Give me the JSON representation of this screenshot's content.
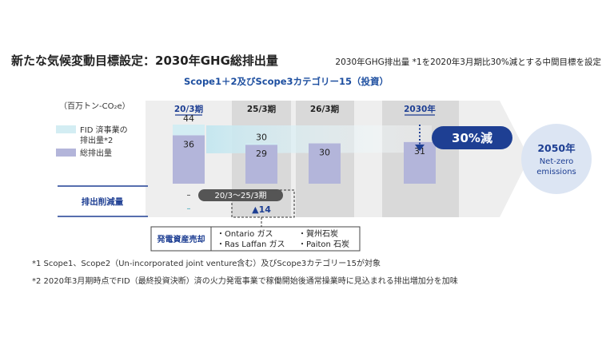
{
  "header": {
    "title": "新たな気候変動目標設定：2030年GHG総排出量",
    "subtitle": "2030年GHG排出量 *1を2020年3月期比30%減とする中間目標を設定"
  },
  "chart_data": {
    "type": "bar",
    "title": "Scope1＋2及びScope3カテゴリー15（投資）",
    "unit_label": "（百万トン-CO₂e）",
    "categories": [
      "20/3期",
      "25/3期",
      "26/3期",
      "2030年"
    ],
    "series": [
      {
        "name": "総排出量",
        "values": [
          36,
          29,
          30,
          31
        ]
      },
      {
        "name": "FID 済事業の排出量*2",
        "values": [
          8,
          1,
          0,
          0
        ]
      }
    ],
    "totals": [
      "44",
      "30",
      "",
      ""
    ],
    "ylim": [
      0,
      44
    ],
    "target_label": "30%減",
    "goal": {
      "year": "2050年",
      "line1": "Net-zero",
      "line2": "emissions"
    },
    "reduction": {
      "row_label": "排出削減量",
      "period_label": "20/3～25/3期",
      "value": "▲14",
      "base_dashes": [
        "–",
        "–"
      ]
    },
    "asset_sales": {
      "label": "発電資産売却",
      "items": [
        "・Ontario ガス",
        "・賀州石炭",
        "・Ras Laffan ガス",
        "・Paiton 石炭"
      ]
    },
    "colors": {
      "total": "#b3b5da",
      "fid": "#d3edf3",
      "highlight": "#1e3f93",
      "teal": "#2a9fb3",
      "gray_band": "#d9d9d9",
      "arrow": "#eeeeee",
      "goal_circle": "#dce5f3"
    }
  },
  "footnotes": [
    "*1 Scope1、Scope2（Un-incorporated joint venture含む）及びScope3カテゴリー15が対象",
    "*2 2020年3月期時点でFID（最終投資決断）済の火力発電事業で稼働開始後通常操業時に見込まれる排出増加分を加味"
  ]
}
